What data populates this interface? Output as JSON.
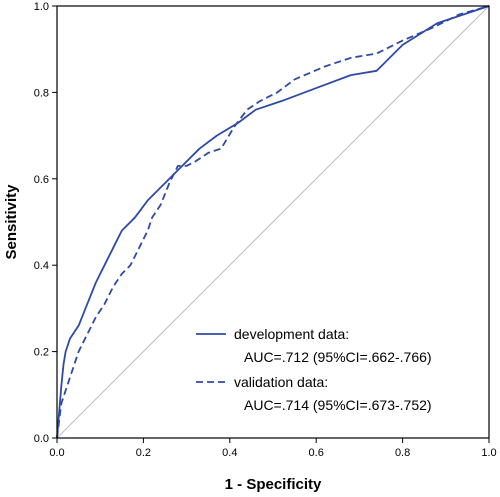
{
  "chart_data": {
    "type": "line",
    "title": "",
    "xlabel": "1 - Specificity",
    "ylabel": "Sensitivity",
    "xlim": [
      0,
      1
    ],
    "ylim": [
      0,
      1
    ],
    "x_ticks": [
      "0.0",
      "0.2",
      "0.4",
      "0.6",
      "0.8",
      "1.0"
    ],
    "y_ticks": [
      "0.0",
      "0.2",
      "0.4",
      "0.6",
      "0.8",
      "1.0"
    ],
    "grid": false,
    "legend_position": "bottom-right",
    "reference_line": {
      "style": "diagonal",
      "color": "#bdbdbd"
    },
    "series": [
      {
        "name": "development data:",
        "annotation": "AUC=.712 (95%CI=.662-.766)",
        "style": "solid",
        "color": "#2e4aa6",
        "points": [
          [
            0,
            0
          ],
          [
            0.005,
            0.06
          ],
          [
            0.01,
            0.12
          ],
          [
            0.015,
            0.17
          ],
          [
            0.02,
            0.2
          ],
          [
            0.03,
            0.23
          ],
          [
            0.05,
            0.26
          ],
          [
            0.07,
            0.31
          ],
          [
            0.09,
            0.36
          ],
          [
            0.11,
            0.4
          ],
          [
            0.13,
            0.44
          ],
          [
            0.15,
            0.48
          ],
          [
            0.18,
            0.51
          ],
          [
            0.21,
            0.55
          ],
          [
            0.25,
            0.59
          ],
          [
            0.28,
            0.62
          ],
          [
            0.33,
            0.67
          ],
          [
            0.37,
            0.7
          ],
          [
            0.42,
            0.73
          ],
          [
            0.46,
            0.76
          ],
          [
            0.52,
            0.78
          ],
          [
            0.6,
            0.81
          ],
          [
            0.68,
            0.84
          ],
          [
            0.74,
            0.85
          ],
          [
            0.8,
            0.91
          ],
          [
            0.88,
            0.96
          ],
          [
            0.94,
            0.98
          ],
          [
            1,
            1
          ]
        ]
      },
      {
        "name": "validation data:",
        "annotation": "AUC=.714 (95%CI=.673-.752)",
        "style": "dashed",
        "color": "#2e4aa6",
        "points": [
          [
            0,
            0
          ],
          [
            0.005,
            0.04
          ],
          [
            0.01,
            0.08
          ],
          [
            0.02,
            0.11
          ],
          [
            0.03,
            0.14
          ],
          [
            0.04,
            0.17
          ],
          [
            0.05,
            0.2
          ],
          [
            0.07,
            0.24
          ],
          [
            0.09,
            0.28
          ],
          [
            0.11,
            0.31
          ],
          [
            0.13,
            0.35
          ],
          [
            0.15,
            0.38
          ],
          [
            0.17,
            0.4
          ],
          [
            0.19,
            0.44
          ],
          [
            0.21,
            0.48
          ],
          [
            0.22,
            0.51
          ],
          [
            0.24,
            0.54
          ],
          [
            0.26,
            0.59
          ],
          [
            0.28,
            0.63
          ],
          [
            0.3,
            0.63
          ],
          [
            0.32,
            0.64
          ],
          [
            0.35,
            0.66
          ],
          [
            0.38,
            0.67
          ],
          [
            0.41,
            0.72
          ],
          [
            0.44,
            0.76
          ],
          [
            0.47,
            0.78
          ],
          [
            0.51,
            0.8
          ],
          [
            0.55,
            0.83
          ],
          [
            0.62,
            0.86
          ],
          [
            0.68,
            0.88
          ],
          [
            0.74,
            0.89
          ],
          [
            0.8,
            0.92
          ],
          [
            0.87,
            0.95
          ],
          [
            0.93,
            0.98
          ],
          [
            1,
            1
          ]
        ]
      }
    ]
  }
}
